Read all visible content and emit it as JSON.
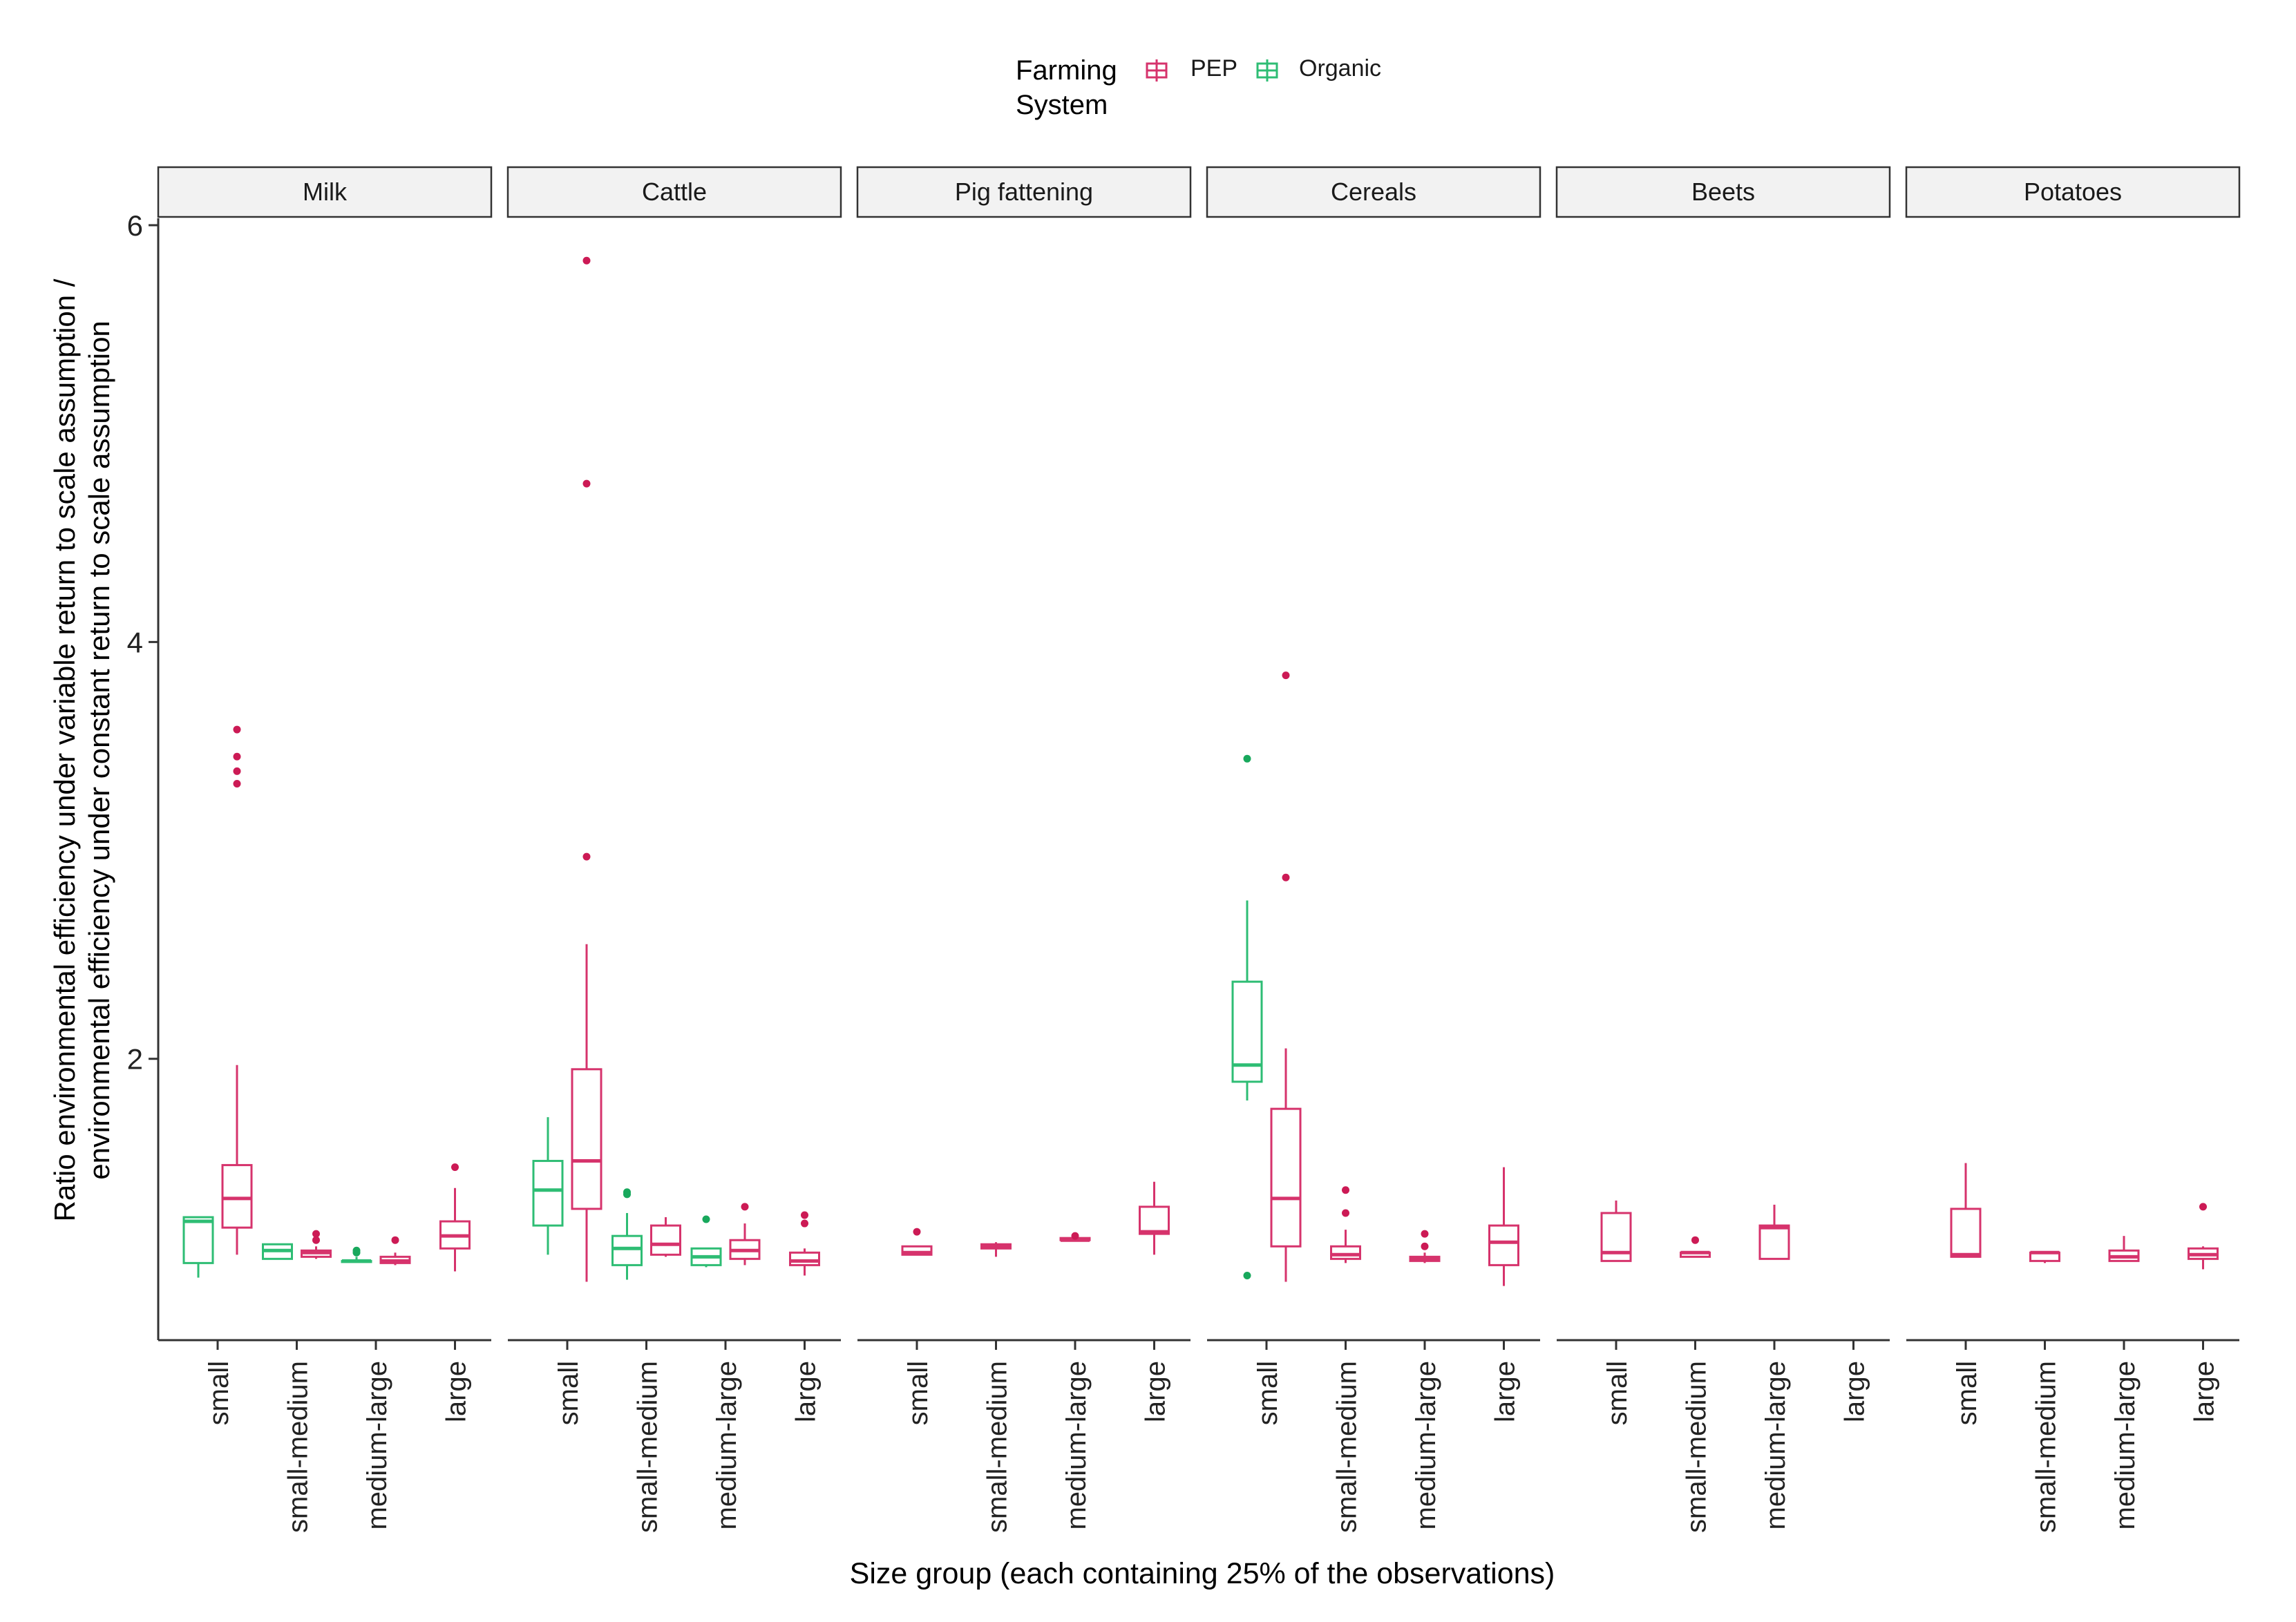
{
  "chart_data": {
    "type": "boxplot",
    "title": "",
    "xlabel": "Size group (each containing 25% of the observations)",
    "ylabel_lines": [
      "Ratio environmental efficiency under variable return to scale assumption /",
      "environmental efficiency under constant return to scale assumption"
    ],
    "ylim": [
      0.65,
      6.0
    ],
    "yticks": [
      2,
      4,
      6
    ],
    "grid": false,
    "legend": {
      "title_lines": [
        "Farming",
        "System"
      ],
      "placement": "top-center",
      "entries": [
        {
          "name": "PEP",
          "color": "#d6336c"
        },
        {
          "name": "Organic",
          "color": "#2ebd74"
        }
      ]
    },
    "categories": [
      "small",
      "small-medium",
      "medium-large",
      "large"
    ],
    "series_colors": {
      "PEP": "#d6336c",
      "Organic": "#2ebd74",
      "PEP_point": "#cc1a55",
      "Organic_point": "#18a85c"
    },
    "facets": [
      {
        "name": "Milk",
        "groups": [
          {
            "category": "small",
            "boxes": [
              {
                "series": "Organic",
                "lw": 0.95,
                "q1": 1.02,
                "med": 1.22,
                "q3": 1.24,
                "hi": 1.24,
                "outliers": []
              },
              {
                "series": "PEP",
                "lw": 1.06,
                "q1": 1.19,
                "med": 1.33,
                "q3": 1.49,
                "hi": 1.97,
                "outliers": [
                  3.58,
                  3.45,
                  3.38,
                  3.32
                ]
              }
            ]
          },
          {
            "category": "small-medium",
            "boxes": [
              {
                "series": "Organic",
                "lw": 1.04,
                "q1": 1.04,
                "med": 1.08,
                "q3": 1.11,
                "hi": 1.11,
                "outliers": []
              },
              {
                "series": "PEP",
                "lw": 1.04,
                "q1": 1.05,
                "med": 1.07,
                "q3": 1.08,
                "hi": 1.1,
                "outliers": [
                  1.16,
                  1.13
                ]
              }
            ]
          },
          {
            "category": "medium-large",
            "boxes": [
              {
                "series": "Organic",
                "lw": 1.03,
                "q1": 1.03,
                "med": 1.03,
                "q3": 1.03,
                "hi": 1.05,
                "outliers": [
                  1.07,
                  1.08
                ]
              },
              {
                "series": "PEP",
                "lw": 1.01,
                "q1": 1.02,
                "med": 1.03,
                "q3": 1.05,
                "hi": 1.07,
                "outliers": [
                  1.13
                ]
              }
            ]
          },
          {
            "category": "large",
            "boxes": [
              {
                "series": "PEP",
                "lw": 0.98,
                "q1": 1.09,
                "med": 1.15,
                "q3": 1.22,
                "hi": 1.38,
                "outliers": [
                  1.48
                ]
              }
            ]
          }
        ]
      },
      {
        "name": "Cattle",
        "groups": [
          {
            "category": "small",
            "boxes": [
              {
                "series": "Organic",
                "lw": 1.06,
                "q1": 1.2,
                "med": 1.37,
                "q3": 1.51,
                "hi": 1.72,
                "outliers": []
              },
              {
                "series": "PEP",
                "lw": 0.93,
                "q1": 1.28,
                "med": 1.51,
                "q3": 1.95,
                "hi": 2.55,
                "outliers": [
                  5.83,
                  4.76,
                  2.97
                ]
              }
            ]
          },
          {
            "category": "small-medium",
            "boxes": [
              {
                "series": "Organic",
                "lw": 0.94,
                "q1": 1.01,
                "med": 1.09,
                "q3": 1.15,
                "hi": 1.26,
                "outliers": [
                  1.36,
                  1.35
                ]
              },
              {
                "series": "PEP",
                "lw": 1.05,
                "q1": 1.06,
                "med": 1.11,
                "q3": 1.2,
                "hi": 1.24,
                "outliers": []
              }
            ]
          },
          {
            "category": "medium-large",
            "boxes": [
              {
                "series": "Organic",
                "lw": 1.0,
                "q1": 1.01,
                "med": 1.05,
                "q3": 1.09,
                "hi": 1.09,
                "outliers": [
                  1.23
                ]
              },
              {
                "series": "PEP",
                "lw": 1.01,
                "q1": 1.04,
                "med": 1.08,
                "q3": 1.13,
                "hi": 1.21,
                "outliers": [
                  1.29
                ]
              }
            ]
          },
          {
            "category": "large",
            "boxes": [
              {
                "series": "PEP",
                "lw": 0.96,
                "q1": 1.01,
                "med": 1.03,
                "q3": 1.07,
                "hi": 1.09,
                "outliers": [
                  1.25,
                  1.21
                ]
              }
            ]
          }
        ]
      },
      {
        "name": "Pig fattening",
        "groups": [
          {
            "category": "small",
            "boxes": [
              {
                "series": "PEP",
                "lw": 1.06,
                "q1": 1.06,
                "med": 1.07,
                "q3": 1.1,
                "hi": 1.1,
                "outliers": [
                  1.17
                ]
              }
            ]
          },
          {
            "category": "small-medium",
            "boxes": [
              {
                "series": "PEP",
                "lw": 1.05,
                "q1": 1.09,
                "med": 1.1,
                "q3": 1.11,
                "hi": 1.12,
                "outliers": []
              }
            ]
          },
          {
            "category": "medium-large",
            "boxes": [
              {
                "series": "PEP",
                "lw": 1.13,
                "q1": 1.13,
                "med": 1.13,
                "q3": 1.14,
                "hi": 1.14,
                "outliers": [
                  1.15
                ]
              }
            ]
          },
          {
            "category": "large",
            "boxes": [
              {
                "series": "PEP",
                "lw": 1.06,
                "q1": 1.16,
                "med": 1.17,
                "q3": 1.29,
                "hi": 1.41,
                "outliers": []
              }
            ]
          }
        ]
      },
      {
        "name": "Cereals",
        "groups": [
          {
            "category": "small",
            "boxes": [
              {
                "series": "Organic",
                "lw": 1.8,
                "q1": 1.89,
                "med": 1.97,
                "q3": 2.37,
                "hi": 2.76,
                "outliers": [
                  3.44,
                  0.96
                ]
              },
              {
                "series": "PEP",
                "lw": 0.93,
                "q1": 1.1,
                "med": 1.33,
                "q3": 1.76,
                "hi": 2.05,
                "outliers": [
                  3.84,
                  2.87
                ]
              }
            ]
          },
          {
            "category": "small-medium",
            "boxes": [
              {
                "series": "PEP",
                "lw": 1.02,
                "q1": 1.04,
                "med": 1.06,
                "q3": 1.1,
                "hi": 1.18,
                "outliers": [
                  1.37,
                  1.26
                ]
              }
            ]
          },
          {
            "category": "medium-large",
            "boxes": [
              {
                "series": "PEP",
                "lw": 1.02,
                "q1": 1.03,
                "med": 1.04,
                "q3": 1.05,
                "hi": 1.07,
                "outliers": [
                  1.16,
                  1.1
                ]
              }
            ]
          },
          {
            "category": "large",
            "boxes": [
              {
                "series": "PEP",
                "lw": 0.91,
                "q1": 1.01,
                "med": 1.12,
                "q3": 1.2,
                "hi": 1.48,
                "outliers": []
              }
            ]
          }
        ]
      },
      {
        "name": "Beets",
        "groups": [
          {
            "category": "small",
            "boxes": [
              {
                "series": "PEP",
                "lw": 1.03,
                "q1": 1.03,
                "med": 1.07,
                "q3": 1.26,
                "hi": 1.32,
                "outliers": []
              }
            ]
          },
          {
            "category": "small-medium",
            "boxes": [
              {
                "series": "PEP",
                "lw": 1.05,
                "q1": 1.05,
                "med": 1.07,
                "q3": 1.07,
                "hi": 1.07,
                "outliers": [
                  1.13
                ]
              }
            ]
          },
          {
            "category": "medium-large",
            "boxes": [
              {
                "series": "PEP",
                "lw": 1.04,
                "q1": 1.04,
                "med": 1.19,
                "q3": 1.2,
                "hi": 1.3,
                "outliers": []
              }
            ]
          },
          {
            "category": "large",
            "boxes": []
          }
        ]
      },
      {
        "name": "Potatoes",
        "groups": [
          {
            "category": "small",
            "boxes": [
              {
                "series": "PEP",
                "lw": 1.05,
                "q1": 1.05,
                "med": 1.06,
                "q3": 1.28,
                "hi": 1.5,
                "outliers": []
              }
            ]
          },
          {
            "category": "small-medium",
            "boxes": [
              {
                "series": "PEP",
                "lw": 1.02,
                "q1": 1.03,
                "med": 1.07,
                "q3": 1.07,
                "hi": 1.07,
                "outliers": []
              }
            ]
          },
          {
            "category": "medium-large",
            "boxes": [
              {
                "series": "PEP",
                "lw": 1.03,
                "q1": 1.03,
                "med": 1.05,
                "q3": 1.08,
                "hi": 1.15,
                "outliers": []
              }
            ]
          },
          {
            "category": "large",
            "boxes": [
              {
                "series": "PEP",
                "lw": 0.99,
                "q1": 1.04,
                "med": 1.06,
                "q3": 1.09,
                "hi": 1.1,
                "outliers": [
                  1.29
                ]
              }
            ]
          }
        ]
      }
    ]
  }
}
